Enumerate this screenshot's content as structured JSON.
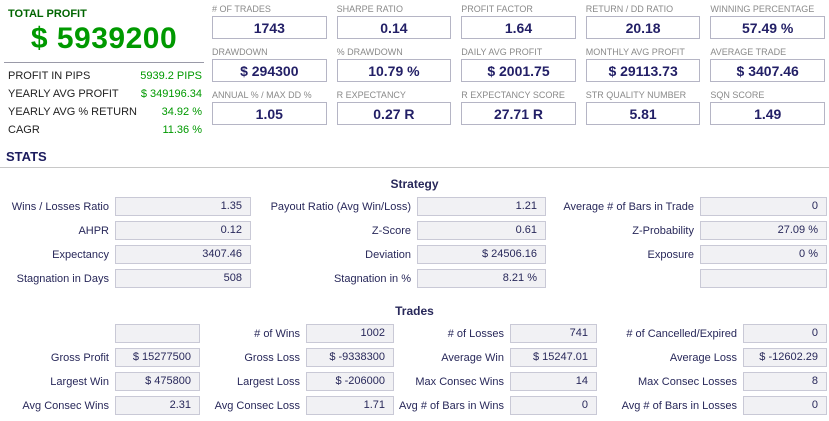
{
  "summary": {
    "title": "TOTAL PROFIT",
    "total_profit": "$ 5939200",
    "rows": [
      {
        "label": "PROFIT IN PIPS",
        "value": "5939.2 PIPS"
      },
      {
        "label": "YEARLY AVG PROFIT",
        "value": "$ 349196.34"
      },
      {
        "label": "YEARLY AVG % RETURN",
        "value": "34.92 %"
      },
      {
        "label": "CAGR",
        "value": "11.36 %"
      }
    ]
  },
  "metrics": {
    "rows": [
      [
        {
          "label": "# OF TRADES",
          "value": "1743"
        },
        {
          "label": "SHARPE RATIO",
          "value": "0.14"
        },
        {
          "label": "PROFIT FACTOR",
          "value": "1.64"
        },
        {
          "label": "RETURN / DD RATIO",
          "value": "20.18"
        },
        {
          "label": "WINNING PERCENTAGE",
          "value": "57.49 %"
        }
      ],
      [
        {
          "label": "DRAWDOWN",
          "value": "$ 294300"
        },
        {
          "label": "% DRAWDOWN",
          "value": "10.79 %"
        },
        {
          "label": "DAILY AVG PROFIT",
          "value": "$ 2001.75"
        },
        {
          "label": "MONTHLY AVG PROFIT",
          "value": "$ 29113.73"
        },
        {
          "label": "AVERAGE TRADE",
          "value": "$ 3407.46"
        }
      ],
      [
        {
          "label": "ANNUAL % / MAX DD %",
          "value": "1.05"
        },
        {
          "label": "R EXPECTANCY",
          "value": "0.27 R"
        },
        {
          "label": "R EXPECTANCY SCORE",
          "value": "27.71 R"
        },
        {
          "label": "STR QUALITY NUMBER",
          "value": "5.81"
        },
        {
          "label": "SQN SCORE",
          "value": "1.49"
        }
      ]
    ]
  },
  "stats": {
    "header": "STATS",
    "strategy": {
      "title": "Strategy",
      "rows": [
        [
          {
            "label": "Wins / Losses Ratio",
            "value": "1.35"
          },
          {
            "label": "Payout Ratio (Avg Win/Loss)",
            "value": "1.21"
          },
          {
            "label": "Average # of Bars in Trade",
            "value": "0"
          }
        ],
        [
          {
            "label": "AHPR",
            "value": "0.12"
          },
          {
            "label": "Z-Score",
            "value": "0.61"
          },
          {
            "label": "Z-Probability",
            "value": "27.09 %"
          }
        ],
        [
          {
            "label": "Expectancy",
            "value": "3407.46"
          },
          {
            "label": "Deviation",
            "value": "$ 24506.16"
          },
          {
            "label": "Exposure",
            "value": "0 %"
          }
        ],
        [
          {
            "label": "Stagnation in Days",
            "value": "508"
          },
          {
            "label": "Stagnation in %",
            "value": "8.21 %"
          },
          {
            "label": "",
            "value": ""
          }
        ]
      ]
    },
    "trades": {
      "title": "Trades",
      "rows": [
        [
          {
            "label": "",
            "value": ""
          },
          {
            "label": "# of Wins",
            "value": "1002"
          },
          {
            "label": "# of Losses",
            "value": "741"
          },
          {
            "label": "# of Cancelled/Expired",
            "value": "0"
          }
        ],
        [
          {
            "label": "Gross Profit",
            "value": "$ 15277500"
          },
          {
            "label": "Gross Loss",
            "value": "$ -9338300"
          },
          {
            "label": "Average Win",
            "value": "$ 15247.01"
          },
          {
            "label": "Average Loss",
            "value": "$ -12602.29"
          }
        ],
        [
          {
            "label": "Largest Win",
            "value": "$ 475800"
          },
          {
            "label": "Largest Loss",
            "value": "$ -206000"
          },
          {
            "label": "Max Consec Wins",
            "value": "14"
          },
          {
            "label": "Max Consec Losses",
            "value": "8"
          }
        ],
        [
          {
            "label": "Avg Consec Wins",
            "value": "2.31"
          },
          {
            "label": "Avg Consec Loss",
            "value": "1.71"
          },
          {
            "label": "Avg # of Bars in Wins",
            "value": "0"
          },
          {
            "label": "Avg # of Bars in Losses",
            "value": "0"
          }
        ]
      ]
    }
  },
  "colors": {
    "profit_green": "#009900",
    "profit_green_dark": "#006400",
    "value_navy": "#221f66",
    "label_gray": "#8a8a8a",
    "metric_box_border": "#b5b5c5",
    "stats_box_bg": "#f1f1f4",
    "stats_box_border": "#c9c9d6"
  }
}
